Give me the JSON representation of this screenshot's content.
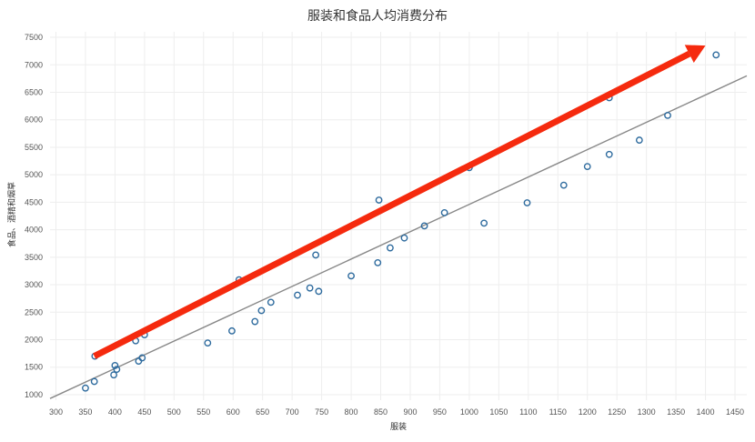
{
  "chart_data": {
    "type": "scatter",
    "title": "服装和食品人均消费分布",
    "xlabel": "服装",
    "ylabel": "食品、酒精和烟草",
    "xlim": [
      290,
      1470
    ],
    "ylim": [
      900,
      7600
    ],
    "xticks": [
      300,
      350,
      400,
      450,
      500,
      550,
      600,
      650,
      700,
      750,
      800,
      850,
      900,
      950,
      1000,
      1050,
      1100,
      1150,
      1200,
      1250,
      1300,
      1350,
      1400,
      1450
    ],
    "yticks": [
      1000,
      1500,
      2000,
      2500,
      3000,
      3500,
      4000,
      4500,
      5000,
      5500,
      6000,
      6500,
      7000,
      7500
    ],
    "grid": true,
    "point_color": "#2e6b9e",
    "series": [
      {
        "x": [
          350,
          365,
          366,
          398,
          400,
          403,
          435,
          440,
          446,
          450,
          557,
          598,
          610,
          637,
          648,
          664,
          709,
          730,
          740,
          745,
          800,
          845,
          847,
          866,
          890,
          924,
          958,
          1000,
          1025,
          1098,
          1160,
          1200,
          1237,
          1237,
          1288,
          1336,
          1418
        ],
        "y": [
          1120,
          1240,
          1700,
          1360,
          1530,
          1460,
          1980,
          1610,
          1670,
          2090,
          1940,
          2160,
          3090,
          2330,
          2530,
          2680,
          2810,
          2940,
          3540,
          2880,
          3160,
          3400,
          4540,
          3670,
          3850,
          4070,
          4310,
          5130,
          4120,
          4490,
          4810,
          5150,
          6400,
          5370,
          5630,
          6080,
          7180
        ]
      }
    ],
    "trend_line": {
      "x": [
        290,
        1470
      ],
      "y": [
        930,
        6800
      ],
      "color": "#888888"
    },
    "arrow": {
      "x": [
        365,
        1400
      ],
      "y": [
        1700,
        7350
      ],
      "color": "#f52a0e"
    }
  }
}
